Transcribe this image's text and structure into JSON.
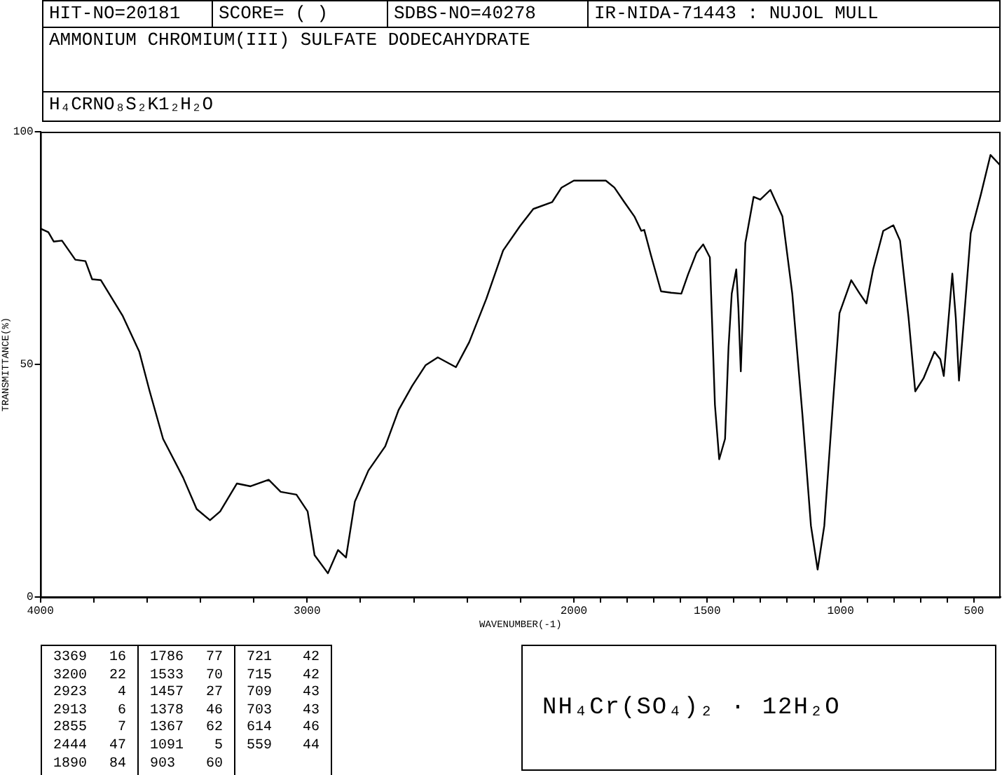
{
  "chart_data": {
    "type": "line",
    "title": "AMMONIUM CHROMIUM(III) SULFATE DODECAHYDRATE",
    "subtitle": "H₄CRNO₈S₂K1₂H₂O",
    "xlabel": "WAVENUMBER(-1)",
    "ylabel": "TRANSMITTANCE(%)",
    "annotations": [
      "HIT-NO=20181",
      "SCORE=  (    )",
      "SDBS-NO=40278",
      "IR-NIDA-71443 : NUJOL MULL",
      "NH₄Cr(SO₄)₂  ·  12H₂O",
      "3369 16",
      "3200 22",
      "2923 4",
      "2913 6",
      "2855 7",
      "2444 47",
      "1890 84",
      "1786 77",
      "1533 70",
      "1457 27",
      "1378 46",
      "1367 62",
      "1091 5",
      "903 60",
      "721 42",
      "715 42",
      "709 43",
      "703 43",
      "614 46",
      "559 44"
    ],
    "x": [
      4000,
      3970,
      3950,
      3919,
      3869,
      3831,
      3806,
      3773,
      3692,
      3629,
      3591,
      3540,
      3465,
      3414,
      3364,
      3326,
      3263,
      3212,
      3144,
      3099,
      3040,
      2998,
      2972,
      2922,
      2884,
      2854,
      2821,
      2770,
      2707,
      2657,
      2606,
      2556,
      2510,
      2442,
      2392,
      2328,
      2265,
      2202,
      2152,
      2081,
      2046,
      2000,
      1880,
      1848,
      1811,
      1773,
      1747,
      1736,
      1711,
      1673,
      1635,
      1597,
      1572,
      1540,
      1515,
      1490,
      1471,
      1455,
      1433,
      1420,
      1408,
      1391,
      1383,
      1374,
      1357,
      1326,
      1301,
      1263,
      1218,
      1181,
      1143,
      1111,
      1086,
      1061,
      1029,
      1004,
      960,
      928,
      903,
      878,
      840,
      802,
      777,
      745,
      720,
      689,
      648,
      626,
      613,
      581,
      568,
      556,
      537,
      512,
      474,
      438,
      400
    ],
    "series": [
      {
        "color": "#000000",
        "values": [
          79.2,
          78.4,
          76.4,
          76.6,
          72.5,
          72.2,
          68.3,
          68.1,
          60.5,
          52.7,
          44.4,
          34.0,
          25.7,
          18.9,
          16.5,
          18.4,
          24.4,
          23.8,
          25.2,
          22.6,
          22.0,
          18.4,
          9.0,
          5.1,
          10.1,
          8.5,
          20.5,
          27.2,
          32.4,
          40.2,
          45.4,
          49.8,
          51.5,
          49.4,
          54.8,
          64.1,
          74.5,
          79.7,
          83.4,
          84.9,
          88.0,
          89.5,
          89.5,
          88.0,
          84.9,
          81.8,
          78.7,
          78.9,
          73.5,
          65.7,
          65.4,
          65.2,
          69.3,
          74.0,
          75.8,
          73.0,
          41.3,
          29.6,
          34.0,
          53.7,
          65.2,
          70.4,
          62.1,
          48.5,
          76.1,
          86.0,
          85.4,
          87.5,
          81.8,
          65.2,
          39.2,
          15.3,
          5.9,
          15.3,
          41.3,
          61.0,
          68.1,
          65.2,
          63.1,
          70.4,
          78.7,
          79.9,
          76.6,
          60.0,
          44.2,
          47.0,
          52.7,
          51.1,
          47.5,
          69.5,
          60.0,
          46.5,
          60.0,
          78.2,
          86.5,
          95.0,
          92.7
        ]
      }
    ],
    "xlim": [
      4000,
      400
    ],
    "ylim": [
      0,
      100
    ],
    "xticks": [
      4000,
      {
        "value": 3800,
        "label": null
      },
      {
        "value": 3600,
        "label": null
      },
      {
        "value": 3400,
        "label": null
      },
      {
        "value": 3200,
        "label": null
      },
      3000,
      {
        "value": 2800,
        "label": null
      },
      {
        "value": 2600,
        "label": null
      },
      {
        "value": 2400,
        "label": null
      },
      {
        "value": 2200,
        "label": null
      },
      2000,
      {
        "value": 1900,
        "label": null
      },
      {
        "value": 1800,
        "label": null
      },
      {
        "value": 1700,
        "label": null
      },
      {
        "value": 1600,
        "label": null
      },
      1500,
      {
        "value": 1400,
        "label": null
      },
      {
        "value": 1300,
        "label": null
      },
      {
        "value": 1200,
        "label": null
      },
      {
        "value": 1100,
        "label": null
      },
      1000,
      {
        "value": 900,
        "label": null
      },
      {
        "value": 800,
        "label": null
      },
      {
        "value": 700,
        "label": null
      },
      {
        "value": 600,
        "label": null
      },
      500
    ],
    "yticks": [
      0,
      50,
      100
    ],
    "grid": false,
    "legend": false,
    "marker": "none",
    "line_style": "solid"
  }
}
